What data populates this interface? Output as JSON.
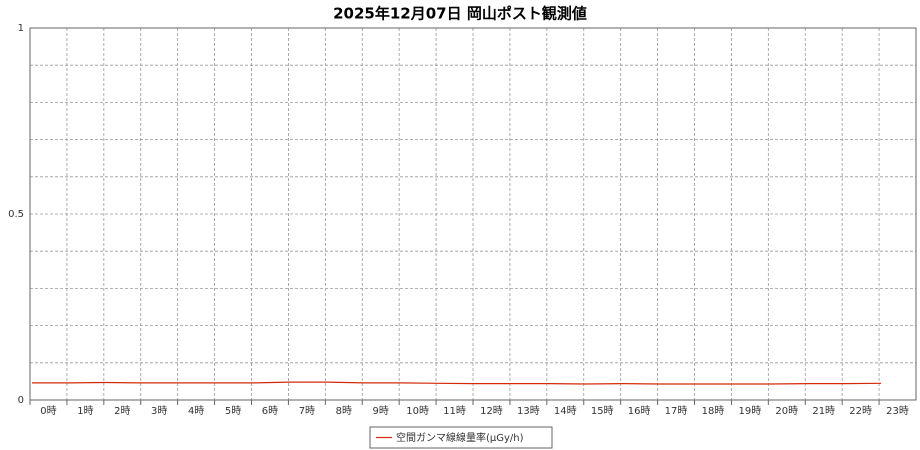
{
  "chart_data": {
    "type": "line",
    "title": "2025年12月07日 岡山ポスト観測値",
    "categories": [
      "0時",
      "1時",
      "2時",
      "3時",
      "4時",
      "5時",
      "6時",
      "7時",
      "8時",
      "9時",
      "10時",
      "11時",
      "12時",
      "13時",
      "14時",
      "15時",
      "16時",
      "17時",
      "18時",
      "19時",
      "20時",
      "21時",
      "22時",
      "23時"
    ],
    "series": [
      {
        "name": "空間ガンマ線線量率(μGy/h)",
        "color": "#d42a0a",
        "values": [
          0.046,
          0.046,
          0.047,
          0.046,
          0.046,
          0.046,
          0.046,
          0.048,
          0.048,
          0.046,
          0.046,
          0.045,
          0.044,
          0.044,
          0.044,
          0.043,
          0.044,
          0.043,
          0.043,
          0.043,
          0.043,
          0.044,
          0.044,
          0.045
        ]
      }
    ],
    "ylim": [
      0,
      1
    ],
    "yticks": [
      0,
      0.5,
      1
    ],
    "yminor_ticks": [
      0.1,
      0.2,
      0.3,
      0.4,
      0.6,
      0.7,
      0.8,
      0.9
    ],
    "grid": true,
    "legend": "bottom"
  }
}
